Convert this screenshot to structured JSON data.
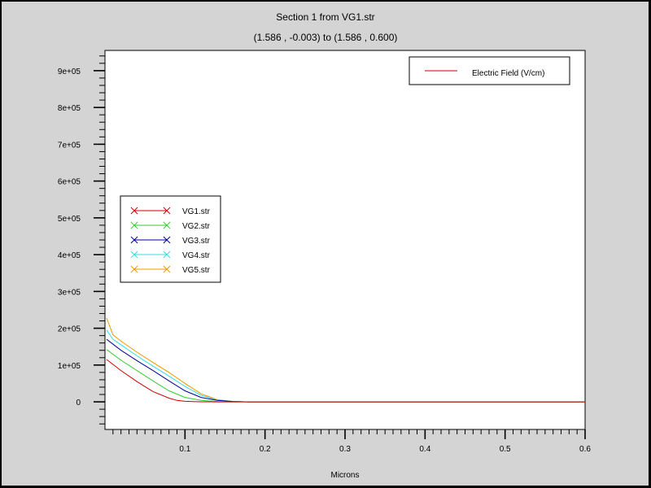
{
  "chart_data": {
    "type": "line",
    "title": "Section 1 from VG1.str",
    "subtitle": "(1.586 , -0.003) to (1.586 , 0.600)",
    "xlabel": "Microns",
    "ylabel": "",
    "xlim": [
      0.0,
      0.6
    ],
    "ylim": [
      -75000,
      955000
    ],
    "x_ticks": [
      {
        "value": 0.1,
        "label": "0.1"
      },
      {
        "value": 0.2,
        "label": "0.2"
      },
      {
        "value": 0.3,
        "label": "0.3"
      },
      {
        "value": 0.4,
        "label": "0.4"
      },
      {
        "value": 0.5,
        "label": "0.5"
      },
      {
        "value": 0.6,
        "label": "0.6"
      }
    ],
    "y_ticks": [
      {
        "value": 0,
        "label": "0"
      },
      {
        "value": 100000,
        "label": "1e+05"
      },
      {
        "value": 200000,
        "label": "2e+05"
      },
      {
        "value": 300000,
        "label": "3e+05"
      },
      {
        "value": 400000,
        "label": "4e+05"
      },
      {
        "value": 500000,
        "label": "5e+05"
      },
      {
        "value": 600000,
        "label": "6e+05"
      },
      {
        "value": 700000,
        "label": "7e+05"
      },
      {
        "value": 800000,
        "label": "8e+05"
      },
      {
        "value": 900000,
        "label": "9e+05"
      }
    ],
    "quantity_legend": {
      "label": "Electric Field (V/cm)",
      "color": "#cc0000",
      "position": "top-right"
    },
    "series_legend_position": "middle-left",
    "grid": false,
    "series": [
      {
        "name": "VG1.str",
        "color": "#cc0000",
        "x": [
          0.002,
          0.02,
          0.04,
          0.06,
          0.08,
          0.09,
          0.1,
          0.11,
          0.12,
          0.14,
          0.6
        ],
        "y": [
          115000,
          85000,
          55000,
          28000,
          10000,
          4000,
          1500,
          600,
          200,
          0,
          0
        ]
      },
      {
        "name": "VG2.str",
        "color": "#33cc33",
        "x": [
          0.002,
          0.02,
          0.04,
          0.06,
          0.08,
          0.1,
          0.12,
          0.14,
          0.16,
          0.6
        ],
        "y": [
          142000,
          113000,
          85000,
          57000,
          30000,
          12000,
          4000,
          1000,
          0,
          0
        ]
      },
      {
        "name": "VG3.str",
        "color": "#000099",
        "x": [
          0.002,
          0.02,
          0.04,
          0.06,
          0.08,
          0.1,
          0.12,
          0.14,
          0.16,
          0.18,
          0.6
        ],
        "y": [
          170000,
          140000,
          112000,
          85000,
          57000,
          30000,
          12000,
          4000,
          1000,
          0,
          0
        ]
      },
      {
        "name": "VG4.str",
        "color": "#33dddd",
        "x": [
          0.002,
          0.01,
          0.02,
          0.04,
          0.06,
          0.08,
          0.1,
          0.12,
          0.14,
          0.16,
          0.18,
          0.6
        ],
        "y": [
          195000,
          170000,
          155000,
          125000,
          97000,
          70000,
          42000,
          18000,
          5000,
          1000,
          0,
          0
        ]
      },
      {
        "name": "VG5.str",
        "color": "#ee9900",
        "x": [
          0.002,
          0.01,
          0.02,
          0.04,
          0.06,
          0.08,
          0.1,
          0.12,
          0.14,
          0.16,
          0.18,
          0.6
        ],
        "y": [
          228000,
          182000,
          165000,
          135000,
          107000,
          80000,
          50000,
          22000,
          6000,
          1000,
          0,
          0
        ]
      }
    ]
  }
}
